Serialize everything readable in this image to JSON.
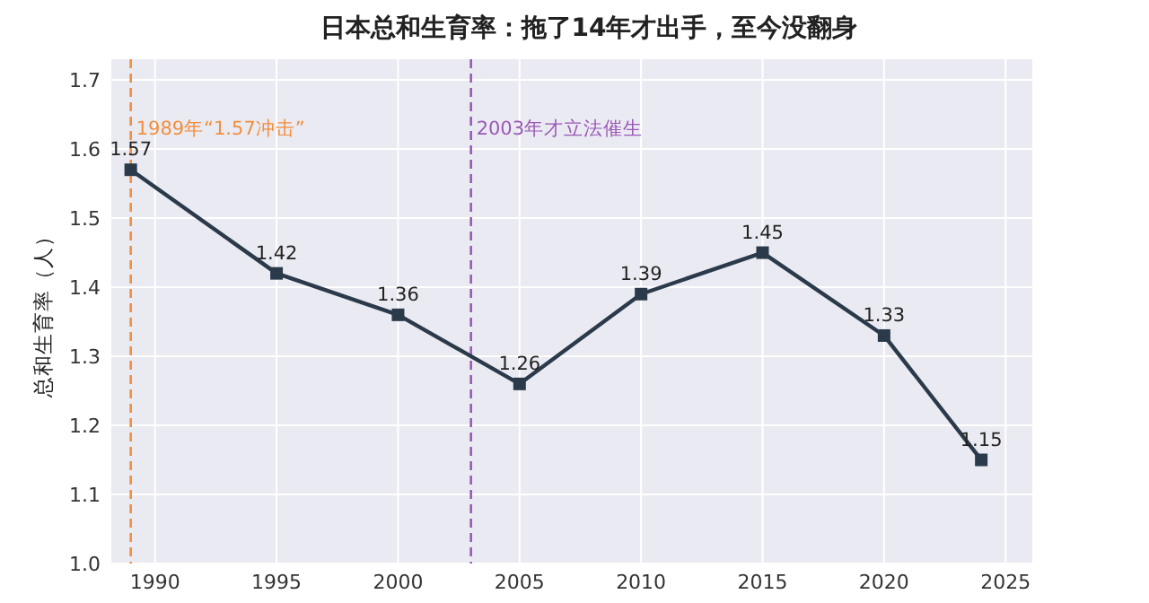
{
  "chart_data": {
    "type": "line",
    "title": "日本总和生育率：拖了14年才出手，至今没翻身",
    "ylabel": "总和生育率（人）",
    "x": [
      1989,
      1995,
      2000,
      2005,
      2010,
      2015,
      2020,
      2024
    ],
    "series": [
      {
        "color": "#2b3a4a",
        "values": [
          1.57,
          1.42,
          1.36,
          1.26,
          1.39,
          1.45,
          1.33,
          1.15
        ]
      }
    ],
    "xlim": [
      1988.2,
      2026.1
    ],
    "xticks": [
      1990,
      1995,
      2000,
      2005,
      2010,
      2015,
      2020,
      2025
    ],
    "ylim": [
      1.0,
      1.73
    ],
    "yticks": [
      {
        "value": 1.0,
        "label": "1.0"
      },
      1.1,
      1.2,
      1.3,
      1.4,
      1.5,
      1.6,
      1.7
    ],
    "ref_lines": [
      {
        "axis": "x",
        "value": 1989,
        "label": "1989年“1.57冲击”",
        "color": "#f28e3c",
        "line_style": "dashed"
      },
      {
        "axis": "x",
        "value": 2003,
        "label": "2003年才立法催生",
        "color": "#9b59b6",
        "line_style": "dashed"
      }
    ],
    "grid": true,
    "marker": "square",
    "line_style": "solid",
    "data_labels": true
  }
}
